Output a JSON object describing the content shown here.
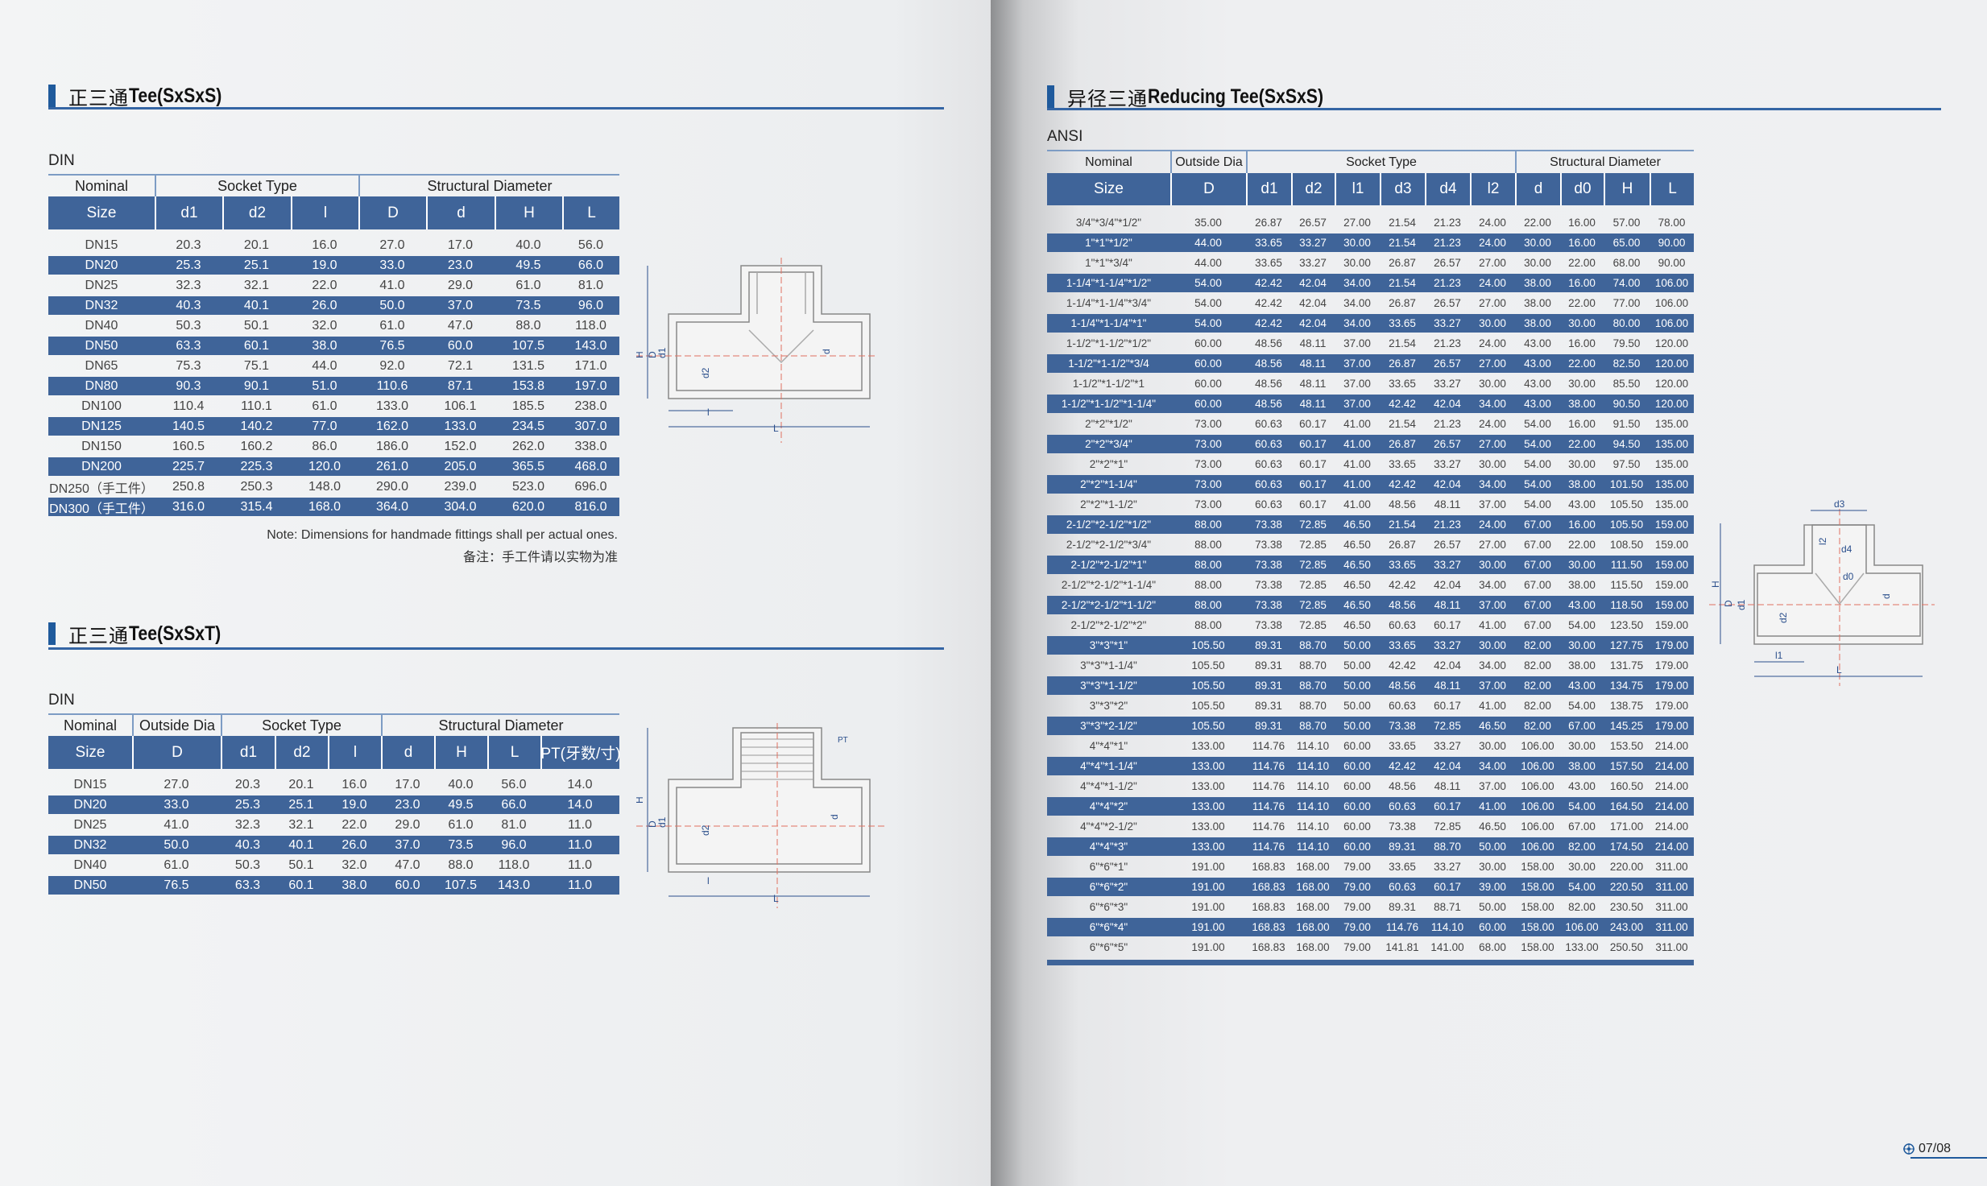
{
  "colors": {
    "accent": "#1f5a9c",
    "row_blue": "#3f6499"
  },
  "left": {
    "section1": {
      "title_cn": "正三通",
      "title_en": "Tee(SxSxS)",
      "standard": "DIN",
      "group_headers": [
        "Nominal",
        "Socket Type",
        "Structural Diameter"
      ],
      "columns": [
        "Size",
        "d1",
        "d2",
        "l",
        "D",
        "d",
        "H",
        "L"
      ],
      "rows": [
        [
          "DN15",
          "20.3",
          "20.1",
          "16.0",
          "27.0",
          "17.0",
          "40.0",
          "56.0"
        ],
        [
          "DN20",
          "25.3",
          "25.1",
          "19.0",
          "33.0",
          "23.0",
          "49.5",
          "66.0"
        ],
        [
          "DN25",
          "32.3",
          "32.1",
          "22.0",
          "41.0",
          "29.0",
          "61.0",
          "81.0"
        ],
        [
          "DN32",
          "40.3",
          "40.1",
          "26.0",
          "50.0",
          "37.0",
          "73.5",
          "96.0"
        ],
        [
          "DN40",
          "50.3",
          "50.1",
          "32.0",
          "61.0",
          "47.0",
          "88.0",
          "118.0"
        ],
        [
          "DN50",
          "63.3",
          "60.1",
          "38.0",
          "76.5",
          "60.0",
          "107.5",
          "143.0"
        ],
        [
          "DN65",
          "75.3",
          "75.1",
          "44.0",
          "92.0",
          "72.1",
          "131.5",
          "171.0"
        ],
        [
          "DN80",
          "90.3",
          "90.1",
          "51.0",
          "110.6",
          "87.1",
          "153.8",
          "197.0"
        ],
        [
          "DN100",
          "110.4",
          "110.1",
          "61.0",
          "133.0",
          "106.1",
          "185.5",
          "238.0"
        ],
        [
          "DN125",
          "140.5",
          "140.2",
          "77.0",
          "162.0",
          "133.0",
          "234.5",
          "307.0"
        ],
        [
          "DN150",
          "160.5",
          "160.2",
          "86.0",
          "186.0",
          "152.0",
          "262.0",
          "338.0"
        ],
        [
          "DN200",
          "225.7",
          "225.3",
          "120.0",
          "261.0",
          "205.0",
          "365.5",
          "468.0"
        ],
        [
          "DN250（手工件）",
          "250.8",
          "250.3",
          "148.0",
          "290.0",
          "239.0",
          "523.0",
          "696.0"
        ],
        [
          "DN300（手工件）",
          "316.0",
          "315.4",
          "168.0",
          "364.0",
          "304.0",
          "620.0",
          "816.0"
        ]
      ],
      "note_en": "Note: Dimensions for handmade fittings shall per actual ones.",
      "note_cn": "备注：手工件请以实物为准",
      "drawing_labels": {
        "H": "H",
        "D": "D",
        "d1": "d1",
        "d2": "d2",
        "d": "d",
        "l": "l",
        "L": "L"
      }
    },
    "section2": {
      "title_cn": "正三通",
      "title_en": "Tee(SxSxT)",
      "standard": "DIN",
      "group_headers": [
        "Nominal",
        "Outside Dia",
        "Socket Type",
        "Structural Diameter"
      ],
      "columns": [
        "Size",
        "D",
        "d1",
        "d2",
        "l",
        "d",
        "H",
        "L",
        "PT(牙数/寸)"
      ],
      "rows": [
        [
          "DN15",
          "27.0",
          "20.3",
          "20.1",
          "16.0",
          "17.0",
          "40.0",
          "56.0",
          "14.0"
        ],
        [
          "DN20",
          "33.0",
          "25.3",
          "25.1",
          "19.0",
          "23.0",
          "49.5",
          "66.0",
          "14.0"
        ],
        [
          "DN25",
          "41.0",
          "32.3",
          "32.1",
          "22.0",
          "29.0",
          "61.0",
          "81.0",
          "11.0"
        ],
        [
          "DN32",
          "50.0",
          "40.3",
          "40.1",
          "26.0",
          "37.0",
          "73.5",
          "96.0",
          "11.0"
        ],
        [
          "DN40",
          "61.0",
          "50.3",
          "50.1",
          "32.0",
          "47.0",
          "88.0",
          "118.0",
          "11.0"
        ],
        [
          "DN50",
          "76.5",
          "63.3",
          "60.1",
          "38.0",
          "60.0",
          "107.5",
          "143.0",
          "11.0"
        ]
      ],
      "drawing_labels": {
        "PT": "PT",
        "H": "H",
        "D": "D",
        "d1": "d1",
        "d2": "d2",
        "d": "d",
        "l": "l",
        "L": "L"
      }
    }
  },
  "right": {
    "section3": {
      "title_cn": "异径三通",
      "title_en": "Reducing Tee(SxSxS)",
      "standard": "ANSI",
      "group_headers": [
        "Nominal",
        "Outside Dia",
        "Socket Type",
        "Structural Diameter"
      ],
      "columns": [
        "Size",
        "D",
        "d1",
        "d2",
        "l1",
        "d3",
        "d4",
        "l2",
        "d",
        "d0",
        "H",
        "L"
      ],
      "rows": [
        [
          "3/4\"*3/4\"*1/2\"",
          "35.00",
          "26.87",
          "26.57",
          "27.00",
          "21.54",
          "21.23",
          "24.00",
          "22.00",
          "16.00",
          "57.00",
          "78.00"
        ],
        [
          "1\"*1\"*1/2\"",
          "44.00",
          "33.65",
          "33.27",
          "30.00",
          "21.54",
          "21.23",
          "24.00",
          "30.00",
          "16.00",
          "65.00",
          "90.00"
        ],
        [
          "1\"*1\"*3/4\"",
          "44.00",
          "33.65",
          "33.27",
          "30.00",
          "26.87",
          "26.57",
          "27.00",
          "30.00",
          "22.00",
          "68.00",
          "90.00"
        ],
        [
          "1-1/4\"*1-1/4\"*1/2\"",
          "54.00",
          "42.42",
          "42.04",
          "34.00",
          "21.54",
          "21.23",
          "24.00",
          "38.00",
          "16.00",
          "74.00",
          "106.00"
        ],
        [
          "1-1/4\"*1-1/4\"*3/4\"",
          "54.00",
          "42.42",
          "42.04",
          "34.00",
          "26.87",
          "26.57",
          "27.00",
          "38.00",
          "22.00",
          "77.00",
          "106.00"
        ],
        [
          "1-1/4\"*1-1/4\"*1\"",
          "54.00",
          "42.42",
          "42.04",
          "34.00",
          "33.65",
          "33.27",
          "30.00",
          "38.00",
          "30.00",
          "80.00",
          "106.00"
        ],
        [
          "1-1/2\"*1-1/2\"*1/2\"",
          "60.00",
          "48.56",
          "48.11",
          "37.00",
          "21.54",
          "21.23",
          "24.00",
          "43.00",
          "16.00",
          "79.50",
          "120.00"
        ],
        [
          "1-1/2\"*1-1/2\"*3/4",
          "60.00",
          "48.56",
          "48.11",
          "37.00",
          "26.87",
          "26.57",
          "27.00",
          "43.00",
          "22.00",
          "82.50",
          "120.00"
        ],
        [
          "1-1/2\"*1-1/2\"*1",
          "60.00",
          "48.56",
          "48.11",
          "37.00",
          "33.65",
          "33.27",
          "30.00",
          "43.00",
          "30.00",
          "85.50",
          "120.00"
        ],
        [
          "1-1/2\"*1-1/2\"*1-1/4\"",
          "60.00",
          "48.56",
          "48.11",
          "37.00",
          "42.42",
          "42.04",
          "34.00",
          "43.00",
          "38.00",
          "90.50",
          "120.00"
        ],
        [
          "2\"*2\"*1/2\"",
          "73.00",
          "60.63",
          "60.17",
          "41.00",
          "21.54",
          "21.23",
          "24.00",
          "54.00",
          "16.00",
          "91.50",
          "135.00"
        ],
        [
          "2\"*2\"*3/4\"",
          "73.00",
          "60.63",
          "60.17",
          "41.00",
          "26.87",
          "26.57",
          "27.00",
          "54.00",
          "22.00",
          "94.50",
          "135.00"
        ],
        [
          "2\"*2\"*1\"",
          "73.00",
          "60.63",
          "60.17",
          "41.00",
          "33.65",
          "33.27",
          "30.00",
          "54.00",
          "30.00",
          "97.50",
          "135.00"
        ],
        [
          "2\"*2\"*1-1/4\"",
          "73.00",
          "60.63",
          "60.17",
          "41.00",
          "42.42",
          "42.04",
          "34.00",
          "54.00",
          "38.00",
          "101.50",
          "135.00"
        ],
        [
          "2\"*2\"*1-1/2\"",
          "73.00",
          "60.63",
          "60.17",
          "41.00",
          "48.56",
          "48.11",
          "37.00",
          "54.00",
          "43.00",
          "105.50",
          "135.00"
        ],
        [
          "2-1/2\"*2-1/2\"*1/2\"",
          "88.00",
          "73.38",
          "72.85",
          "46.50",
          "21.54",
          "21.23",
          "24.00",
          "67.00",
          "16.00",
          "105.50",
          "159.00"
        ],
        [
          "2-1/2\"*2-1/2\"*3/4\"",
          "88.00",
          "73.38",
          "72.85",
          "46.50",
          "26.87",
          "26.57",
          "27.00",
          "67.00",
          "22.00",
          "108.50",
          "159.00"
        ],
        [
          "2-1/2\"*2-1/2\"*1\"",
          "88.00",
          "73.38",
          "72.85",
          "46.50",
          "33.65",
          "33.27",
          "30.00",
          "67.00",
          "30.00",
          "111.50",
          "159.00"
        ],
        [
          "2-1/2\"*2-1/2\"*1-1/4\"",
          "88.00",
          "73.38",
          "72.85",
          "46.50",
          "42.42",
          "42.04",
          "34.00",
          "67.00",
          "38.00",
          "115.50",
          "159.00"
        ],
        [
          "2-1/2\"*2-1/2\"*1-1/2\"",
          "88.00",
          "73.38",
          "72.85",
          "46.50",
          "48.56",
          "48.11",
          "37.00",
          "67.00",
          "43.00",
          "118.50",
          "159.00"
        ],
        [
          "2-1/2\"*2-1/2\"*2\"",
          "88.00",
          "73.38",
          "72.85",
          "46.50",
          "60.63",
          "60.17",
          "41.00",
          "67.00",
          "54.00",
          "123.50",
          "159.00"
        ],
        [
          "3\"*3\"*1\"",
          "105.50",
          "89.31",
          "88.70",
          "50.00",
          "33.65",
          "33.27",
          "30.00",
          "82.00",
          "30.00",
          "127.75",
          "179.00"
        ],
        [
          "3\"*3\"*1-1/4\"",
          "105.50",
          "89.31",
          "88.70",
          "50.00",
          "42.42",
          "42.04",
          "34.00",
          "82.00",
          "38.00",
          "131.75",
          "179.00"
        ],
        [
          "3\"*3\"*1-1/2\"",
          "105.50",
          "89.31",
          "88.70",
          "50.00",
          "48.56",
          "48.11",
          "37.00",
          "82.00",
          "43.00",
          "134.75",
          "179.00"
        ],
        [
          "3\"*3\"*2\"",
          "105.50",
          "89.31",
          "88.70",
          "50.00",
          "60.63",
          "60.17",
          "41.00",
          "82.00",
          "54.00",
          "138.75",
          "179.00"
        ],
        [
          "3\"*3\"*2-1/2\"",
          "105.50",
          "89.31",
          "88.70",
          "50.00",
          "73.38",
          "72.85",
          "46.50",
          "82.00",
          "67.00",
          "145.25",
          "179.00"
        ],
        [
          "4\"*4\"*1\"",
          "133.00",
          "114.76",
          "114.10",
          "60.00",
          "33.65",
          "33.27",
          "30.00",
          "106.00",
          "30.00",
          "153.50",
          "214.00"
        ],
        [
          "4\"*4\"*1-1/4\"",
          "133.00",
          "114.76",
          "114.10",
          "60.00",
          "42.42",
          "42.04",
          "34.00",
          "106.00",
          "38.00",
          "157.50",
          "214.00"
        ],
        [
          "4\"*4\"*1-1/2\"",
          "133.00",
          "114.76",
          "114.10",
          "60.00",
          "48.56",
          "48.11",
          "37.00",
          "106.00",
          "43.00",
          "160.50",
          "214.00"
        ],
        [
          "4\"*4\"*2\"",
          "133.00",
          "114.76",
          "114.10",
          "60.00",
          "60.63",
          "60.17",
          "41.00",
          "106.00",
          "54.00",
          "164.50",
          "214.00"
        ],
        [
          "4\"*4\"*2-1/2\"",
          "133.00",
          "114.76",
          "114.10",
          "60.00",
          "73.38",
          "72.85",
          "46.50",
          "106.00",
          "67.00",
          "171.00",
          "214.00"
        ],
        [
          "4\"*4\"*3\"",
          "133.00",
          "114.76",
          "114.10",
          "60.00",
          "89.31",
          "88.70",
          "50.00",
          "106.00",
          "82.00",
          "174.50",
          "214.00"
        ],
        [
          "6\"*6\"*1\"",
          "191.00",
          "168.83",
          "168.00",
          "79.00",
          "33.65",
          "33.27",
          "30.00",
          "158.00",
          "30.00",
          "220.00",
          "311.00"
        ],
        [
          "6\"*6\"*2\"",
          "191.00",
          "168.83",
          "168.00",
          "79.00",
          "60.63",
          "60.17",
          "39.00",
          "158.00",
          "54.00",
          "220.50",
          "311.00"
        ],
        [
          "6\"*6\"*3\"",
          "191.00",
          "168.83",
          "168.00",
          "79.00",
          "89.31",
          "88.71",
          "50.00",
          "158.00",
          "82.00",
          "230.50",
          "311.00"
        ],
        [
          "6\"*6\"*4\"",
          "191.00",
          "168.83",
          "168.00",
          "79.00",
          "114.76",
          "114.10",
          "60.00",
          "158.00",
          "106.00",
          "243.00",
          "311.00"
        ],
        [
          "6\"*6\"*5\"",
          "191.00",
          "168.83",
          "168.00",
          "79.00",
          "141.81",
          "141.00",
          "68.00",
          "158.00",
          "133.00",
          "250.50",
          "311.00"
        ]
      ],
      "drawing_labels": {
        "d3": "d3",
        "l2": "l2",
        "d4": "d4",
        "d0": "d0",
        "H": "H",
        "D": "D",
        "d1": "d1",
        "d2": "d2",
        "d": "d",
        "l1": "l1",
        "L": "L"
      }
    }
  },
  "footer": {
    "page_number": "07/08",
    "page_icon": "crosshair-circle-icon"
  }
}
